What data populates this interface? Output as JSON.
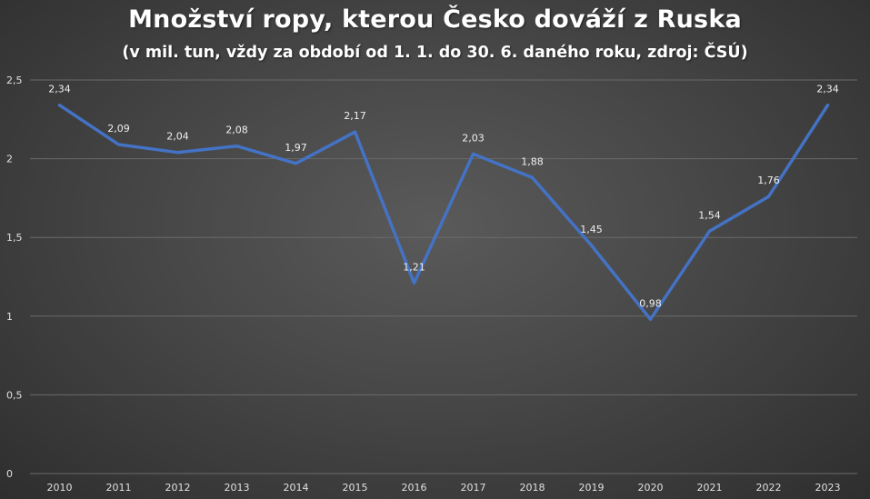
{
  "chart_data": {
    "type": "line",
    "title": "Množství ropy, kterou Česko dováží z Ruska",
    "subtitle": "(v mil. tun, vždy za období od 1. 1. do 30. 6. daného roku, zdroj: ČSÚ)",
    "x": [
      "2010",
      "2011",
      "2012",
      "2013",
      "2014",
      "2015",
      "2016",
      "2017",
      "2018",
      "2019",
      "2020",
      "2021",
      "2022",
      "2023"
    ],
    "values": [
      2.34,
      2.09,
      2.04,
      2.08,
      1.97,
      2.17,
      1.21,
      2.03,
      1.88,
      1.45,
      0.98,
      1.54,
      1.76,
      2.34
    ],
    "data_labels": [
      "2,34",
      "2,09",
      "2,04",
      "2,08",
      "1,97",
      "2,17",
      "1,21",
      "2,03",
      "1,88",
      "1,45",
      "0,98",
      "1,54",
      "1,76",
      "2,34"
    ],
    "yticks": [
      0,
      0.5,
      1,
      1.5,
      2,
      2.5
    ],
    "ytick_labels": [
      "0",
      "0,5",
      "1",
      "1,5",
      "2",
      "2,5"
    ],
    "ylim": [
      0,
      2.5
    ],
    "grid": true,
    "legend": "none",
    "colors": {
      "line": "#4472c4",
      "grid": "#6a6a6a"
    }
  }
}
